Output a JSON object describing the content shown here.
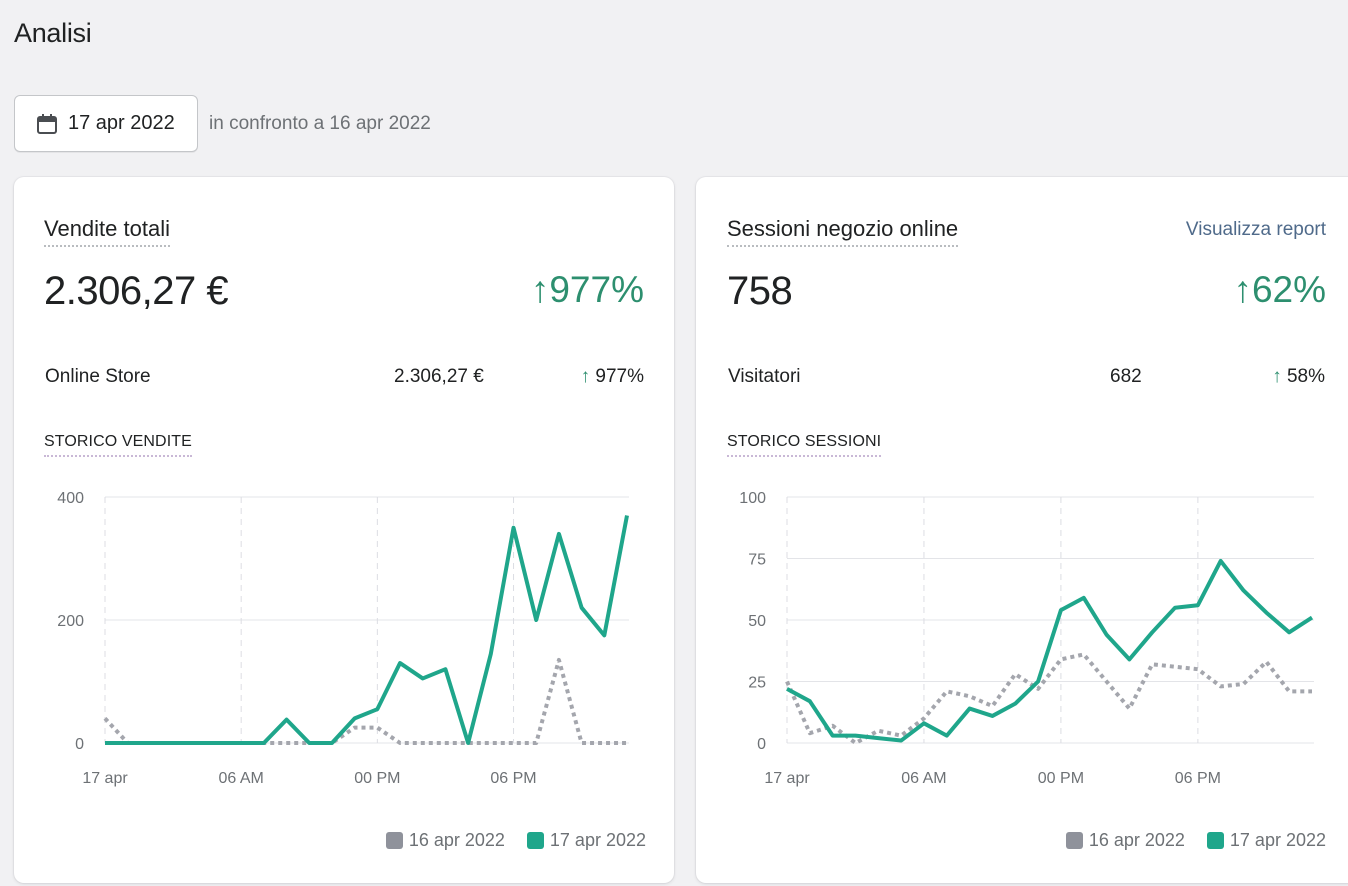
{
  "page": {
    "title": "Analisi"
  },
  "date_picker": {
    "label": "17 apr 2022",
    "compare_text": "in confronto a 16 apr 2022"
  },
  "colors": {
    "current": "#1fa68b",
    "previous": "#a4a6ad",
    "accent": "#2d8f6f"
  },
  "sales_card": {
    "title": "Vendite totali",
    "value": "2.306,27 €",
    "change": "977%",
    "row": {
      "label": "Online Store",
      "value": "2.306,27 €",
      "change": "977%"
    },
    "chart_title": "STORICO VENDITE"
  },
  "sessions_card": {
    "title": "Sessioni negozio online",
    "link": "Visualizza report",
    "value": "758",
    "change": "62%",
    "row": {
      "label": "Visitatori",
      "value": "682",
      "change": "58%"
    },
    "chart_title": "STORICO SESSIONI"
  },
  "legend": {
    "previous": "16 apr 2022",
    "current": "17 apr 2022"
  },
  "chart_data": [
    {
      "type": "line",
      "title": "STORICO VENDITE",
      "ylim": [
        0,
        400
      ],
      "yticks": [
        "0",
        "200",
        "400"
      ],
      "xticks": [
        {
          "label": "17 apr",
          "x": 0
        },
        {
          "label": "06 AM",
          "x": 6
        },
        {
          "label": "00 PM",
          "x": 12
        },
        {
          "label": "06 PM",
          "x": 18
        }
      ],
      "x": [
        0,
        1,
        2,
        3,
        4,
        5,
        6,
        7,
        8,
        9,
        10,
        11,
        12,
        13,
        14,
        15,
        16,
        17,
        18,
        19,
        20,
        21,
        22,
        23
      ],
      "series": [
        {
          "name": "16 apr 2022",
          "values": [
            40,
            0,
            0,
            0,
            0,
            0,
            0,
            0,
            0,
            0,
            0,
            25,
            25,
            0,
            0,
            0,
            0,
            0,
            0,
            0,
            135,
            0,
            0,
            0
          ]
        },
        {
          "name": "17 apr 2022",
          "values": [
            0,
            0,
            0,
            0,
            0,
            0,
            0,
            0,
            38,
            0,
            0,
            40,
            55,
            130,
            105,
            120,
            0,
            145,
            350,
            200,
            340,
            220,
            175,
            370
          ]
        }
      ]
    },
    {
      "type": "line",
      "title": "STORICO SESSIONI",
      "ylim": [
        0,
        100
      ],
      "yticks": [
        "0",
        "25",
        "50",
        "75",
        "100"
      ],
      "xticks": [
        {
          "label": "17 apr",
          "x": 0
        },
        {
          "label": "06 AM",
          "x": 6
        },
        {
          "label": "00 PM",
          "x": 12
        },
        {
          "label": "06 PM",
          "x": 18
        }
      ],
      "x": [
        0,
        1,
        2,
        3,
        4,
        5,
        6,
        7,
        8,
        9,
        10,
        11,
        12,
        13,
        14,
        15,
        16,
        17,
        18,
        19,
        20,
        21,
        22,
        23
      ],
      "series": [
        {
          "name": "16 apr 2022",
          "values": [
            25,
            4,
            7,
            0,
            5,
            3,
            10,
            21,
            19,
            15,
            28,
            22,
            34,
            36,
            25,
            14,
            32,
            31,
            30,
            23,
            24,
            33,
            21,
            21
          ]
        },
        {
          "name": "17 apr 2022",
          "values": [
            22,
            17,
            3,
            3,
            2,
            1,
            8,
            3,
            14,
            11,
            16,
            25,
            54,
            59,
            44,
            34,
            45,
            55,
            56,
            74,
            62,
            53,
            45,
            51
          ]
        }
      ]
    }
  ]
}
